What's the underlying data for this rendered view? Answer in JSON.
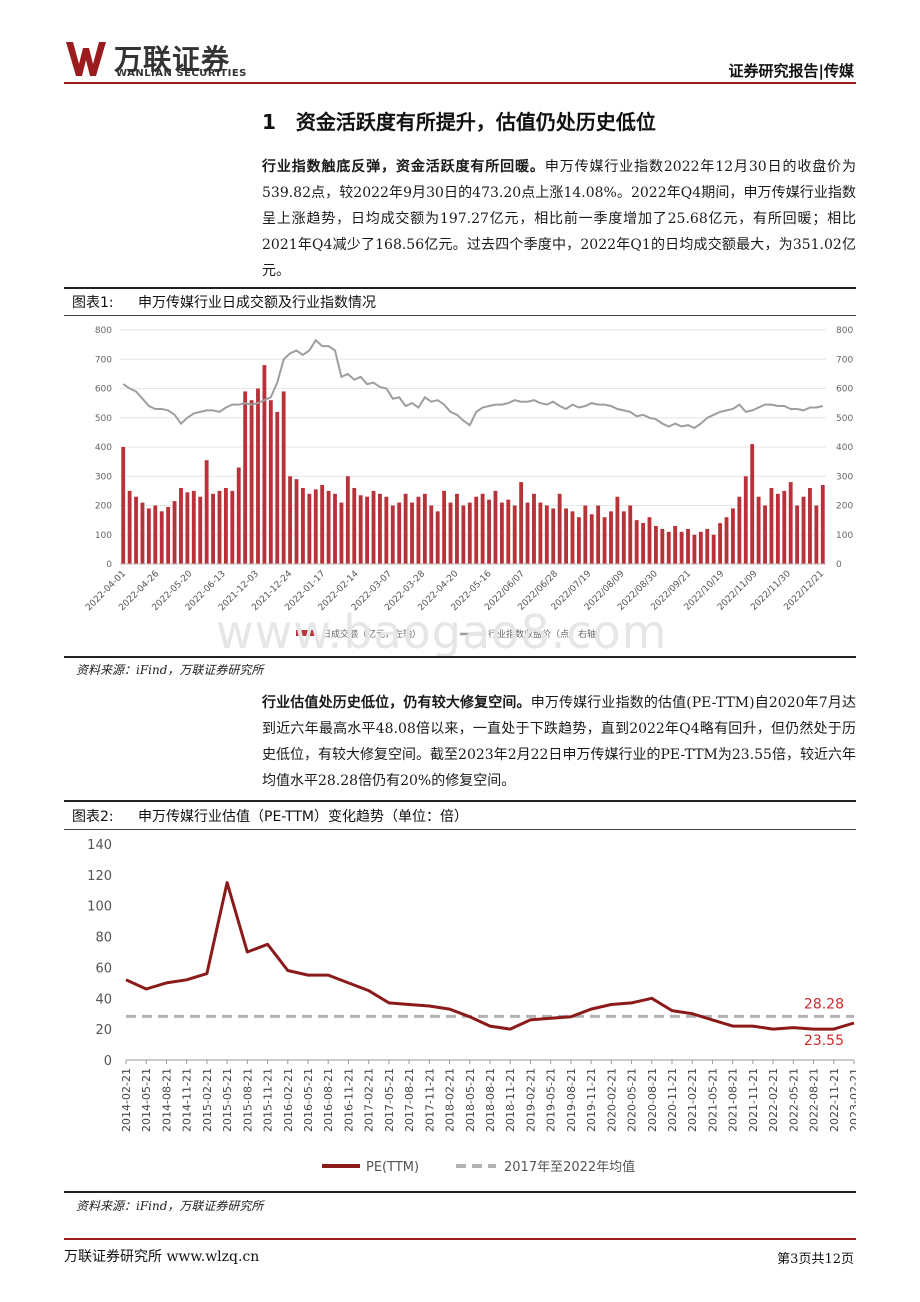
{
  "header": {
    "logo_cn": "万联证券",
    "logo_en": "WANLIAN SECURITIES",
    "report_type": "证券研究报告|传媒"
  },
  "section": {
    "title": "1　资金活跃度有所提升，估值仍处历史低位"
  },
  "para1": {
    "lead": "行业指数触底反弹，资金活跃度有所回暖。",
    "body": "申万传媒行业指数2022年12月30日的收盘价为539.82点，较2022年9月30日的473.20点上涨14.08%。2022年Q4期间，申万传媒行业指数呈上涨趋势，日均成交额为197.27亿元，相比前一季度增加了25.68亿元，有所回暖；相比2021年Q4减少了168.56亿元。过去四个季度中，2022年Q1的日均成交额最大，为351.02亿元。"
  },
  "figure1": {
    "number": "图表1:",
    "title": "申万传媒行业日成交额及行业指数情况",
    "source": "资料来源：iFind，万联证券研究所",
    "watermark": "www.baogao8.com"
  },
  "para2": {
    "lead": "行业估值处历史低位，仍有较大修复空间。",
    "body": "申万传媒行业指数的估值(PE-TTM)自2020年7月达到近六年最高水平48.08倍以来，一直处于下跌趋势，直到2022年Q4略有回升，但仍然处于历史低位，有较大修复空间。截至2023年2月22日申万传媒行业的PE-TTM为23.55倍，较近六年均值水平28.28倍仍有20%的修复空间。"
  },
  "figure2": {
    "number": "图表2:",
    "title": "申万传媒行业估值（PE-TTM）变化趋势（单位：倍）",
    "source": "资料来源：iFind，万联证券研究所"
  },
  "footer": {
    "left": "万联证券研究所 www.wlzq.cn",
    "right": "第3页共12页"
  },
  "colors": {
    "brand_red": "#9b1b1e",
    "bar_red": "#b8323a",
    "index_gray": "#9e9e9e",
    "pe_red": "#8b1a1a",
    "avg_gray": "#b3b3b3"
  },
  "chart_data": [
    {
      "type": "bar+line",
      "title": "申万传媒行业日成交额及行业指数情况",
      "x_ticks": [
        "2022-04-01",
        "2022-04-26",
        "2022-05-20",
        "2022-06-13",
        "2021-12-03",
        "2021-12-24",
        "2022-01-17",
        "2022-02-14",
        "2022-03-07",
        "2022-03-28",
        "2022-04-20",
        "2022-05-16",
        "2022/06/07",
        "2022/06/28",
        "2022/07/19",
        "2022/08/09",
        "2022/08/30",
        "2022/09/21",
        "2022/10/19",
        "2022/11/09",
        "2022/11/30",
        "2022/12/21"
      ],
      "y_left_ticks": [
        "0",
        "100",
        "200",
        "300",
        "400",
        "500",
        "600",
        "700",
        "800"
      ],
      "y_right_ticks": [
        "0",
        "100",
        "200",
        "300",
        "400",
        "500",
        "600",
        "700",
        "800"
      ],
      "ylim_left": [
        0,
        800
      ],
      "ylim_right": [
        0,
        800
      ],
      "legend_position": "bottom",
      "series": [
        {
          "name": "日成交额（亿元，左轴）",
          "kind": "bar",
          "values": [
            400,
            250,
            230,
            210,
            190,
            200,
            180,
            195,
            215,
            260,
            245,
            250,
            230,
            355,
            240,
            250,
            260,
            250,
            330,
            590,
            560,
            600,
            680,
            560,
            520,
            590,
            300,
            290,
            260,
            240,
            255,
            270,
            250,
            240,
            210,
            300,
            260,
            235,
            230,
            250,
            240,
            230,
            200,
            210,
            240,
            210,
            230,
            240,
            200,
            180,
            250,
            210,
            240,
            200,
            210,
            230,
            240,
            220,
            250,
            210,
            220,
            200,
            280,
            210,
            240,
            210,
            200,
            190,
            240,
            190,
            180,
            160,
            200,
            170,
            200,
            160,
            180,
            230,
            180,
            200,
            150,
            140,
            160,
            130,
            120,
            110,
            130,
            110,
            120,
            100,
            110,
            120,
            100,
            140,
            160,
            190,
            230,
            300,
            410,
            230,
            200,
            260,
            240,
            250,
            280,
            200,
            230,
            260,
            200,
            270
          ]
        },
        {
          "name": "行业指数收盘价（点，右轴）",
          "kind": "line",
          "values": [
            615,
            600,
            590,
            565,
            540,
            530,
            530,
            525,
            510,
            480,
            500,
            515,
            520,
            525,
            525,
            520,
            535,
            545,
            545,
            550,
            545,
            550,
            560,
            570,
            620,
            700,
            720,
            730,
            715,
            730,
            765,
            745,
            745,
            730,
            640,
            650,
            630,
            640,
            615,
            620,
            605,
            600,
            565,
            570,
            540,
            550,
            535,
            570,
            555,
            560,
            545,
            520,
            510,
            490,
            475,
            520,
            535,
            540,
            545,
            545,
            550,
            560,
            555,
            555,
            560,
            550,
            545,
            555,
            540,
            530,
            545,
            535,
            540,
            550,
            545,
            545,
            540,
            530,
            525,
            520,
            505,
            510,
            500,
            495,
            480,
            470,
            480,
            470,
            475,
            465,
            480,
            500,
            510,
            520,
            525,
            530,
            545,
            520,
            525,
            535,
            545,
            545,
            540,
            540,
            530,
            530,
            525,
            535,
            535,
            540
          ]
        }
      ]
    },
    {
      "type": "line",
      "title": "申万传媒行业估值（PE-TTM）变化趋势（单位：倍）",
      "x": [
        "2014-02-21",
        "2014-05-21",
        "2014-08-21",
        "2014-11-21",
        "2015-02-21",
        "2015-05-21",
        "2015-08-21",
        "2015-11-21",
        "2016-02-21",
        "2016-05-21",
        "2016-08-21",
        "2016-11-21",
        "2017-02-21",
        "2017-05-21",
        "2017-08-21",
        "2017-11-21",
        "2018-02-21",
        "2018-05-21",
        "2018-08-21",
        "2018-11-21",
        "2019-02-21",
        "2019-05-21",
        "2019-08-21",
        "2019-11-21",
        "2020-02-21",
        "2020-05-21",
        "2020-08-21",
        "2020-11-21",
        "2021-02-21",
        "2021-05-21",
        "2021-08-21",
        "2021-11-21",
        "2022-02-21",
        "2022-05-21",
        "2022-08-21",
        "2022-11-21",
        "2023-02-21"
      ],
      "ylim": [
        0,
        140
      ],
      "y_ticks": [
        "0",
        "20",
        "40",
        "60",
        "80",
        "100",
        "120",
        "140"
      ],
      "legend_position": "bottom",
      "annotations": [
        "28.28",
        "23.55"
      ],
      "series": [
        {
          "name": "PE(TTM)",
          "values": [
            52,
            46,
            50,
            52,
            56,
            115,
            70,
            75,
            58,
            55,
            55,
            50,
            45,
            37,
            36,
            35,
            33,
            28,
            22,
            20,
            26,
            27,
            28,
            33,
            36,
            37,
            40,
            32,
            30,
            26,
            22,
            22,
            20,
            21,
            20,
            20,
            24
          ]
        },
        {
          "name": "2017年至2022年均值",
          "values": [
            28.28,
            28.28,
            28.28,
            28.28,
            28.28,
            28.28,
            28.28,
            28.28,
            28.28,
            28.28,
            28.28,
            28.28,
            28.28,
            28.28,
            28.28,
            28.28,
            28.28,
            28.28,
            28.28,
            28.28,
            28.28,
            28.28,
            28.28,
            28.28,
            28.28,
            28.28,
            28.28,
            28.28,
            28.28,
            28.28,
            28.28,
            28.28,
            28.28,
            28.28,
            28.28,
            28.28,
            28.28
          ]
        }
      ]
    }
  ]
}
